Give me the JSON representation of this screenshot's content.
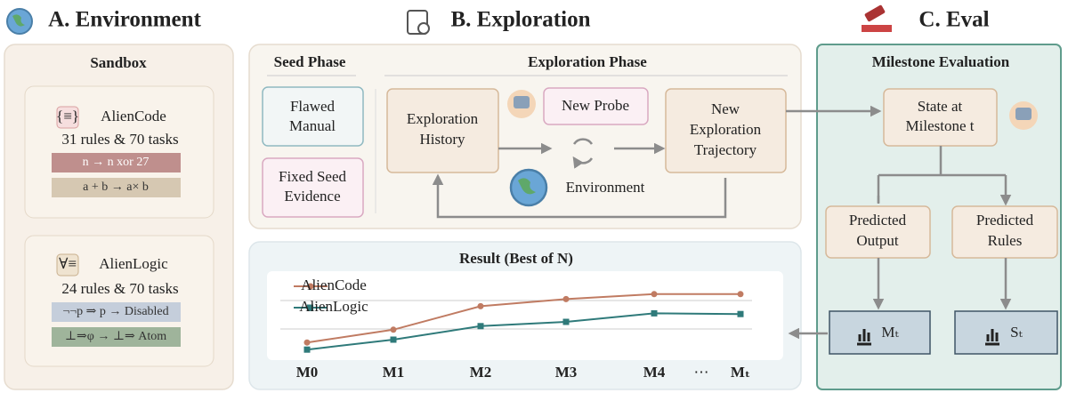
{
  "environment": {
    "title": "A. Environment",
    "sandbox": "Sandbox",
    "envs": [
      {
        "name": "AlienCode",
        "stats": "31 rules & 70 tasks",
        "rules": [
          "n → n xor 27",
          "a + b → a× b"
        ]
      },
      {
        "name": "AlienLogic",
        "stats": "24 rules & 70 tasks",
        "rules": [
          "¬¬p ⇒ p → Disabled",
          "⊥⇒φ → ⊥⇒ Atom"
        ]
      }
    ]
  },
  "exploration": {
    "title": "B. Exploration",
    "seed_phase": "Seed Phase",
    "exploration_phase": "Exploration Phase",
    "seed_items": [
      [
        "Flawed",
        "Manual"
      ],
      [
        "Fixed Seed",
        "Evidence"
      ]
    ],
    "history": [
      "Exploration",
      "History"
    ],
    "probe": "New Probe",
    "environment": "Environment",
    "trajectory": [
      "New",
      "Exploration",
      "Trajectory"
    ]
  },
  "chart_data": {
    "type": "line",
    "title": "Result (Best of N)",
    "categories": [
      "M0",
      "M1",
      "M2",
      "M3",
      "M4",
      "Mₜ"
    ],
    "ellipsis": "⋯",
    "series": [
      {
        "name": "AlienCode",
        "color": "#c07b62",
        "values": [
          21,
          39,
          72,
          82,
          89,
          89
        ]
      },
      {
        "name": "AlienLogic",
        "color": "#2f7a7a",
        "values": [
          11,
          25,
          44,
          50,
          62,
          61
        ]
      }
    ],
    "ylim": [
      0,
      100
    ],
    "yticks": [
      40,
      80
    ],
    "grid": true
  },
  "eval": {
    "title": "C. Eval",
    "heading": "Milestone Evaluation",
    "state": [
      "State at",
      "Milestone t"
    ],
    "predicted_output": [
      "Predicted",
      "Output"
    ],
    "predicted_rules": [
      "Predicted",
      "Rules"
    ],
    "metrics": [
      "Mₜ",
      "Sₜ"
    ]
  }
}
